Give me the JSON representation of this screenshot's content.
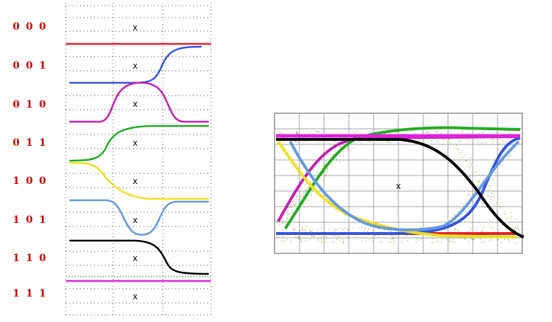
{
  "diagram": {
    "left_panel": {
      "rows": [
        {
          "code": "0 0 0",
          "mark": "x"
        },
        {
          "code": "0 0 1",
          "mark": "x"
        },
        {
          "code": "0 1 0",
          "mark": "x"
        },
        {
          "code": "0 1 1",
          "mark": "x"
        },
        {
          "code": "1 0 0",
          "mark": "x"
        },
        {
          "code": "1 0 1",
          "mark": "x"
        },
        {
          "code": "1 1 0",
          "mark": "x"
        },
        {
          "code": "1 1 1",
          "mark": "x"
        }
      ],
      "label_color": "#cc0000"
    },
    "right_panel": {
      "center_mark": "x"
    },
    "colors": {
      "c000": "#e0202a",
      "c001": "#3355dd",
      "c010": "#c020b0",
      "c011": "#22aa22",
      "c100": "#f0e020",
      "c101": "#6699dd",
      "c110": "#000000",
      "c111": "#e020e0",
      "noise": "#7a8a20",
      "grid": "#555555"
    }
  }
}
